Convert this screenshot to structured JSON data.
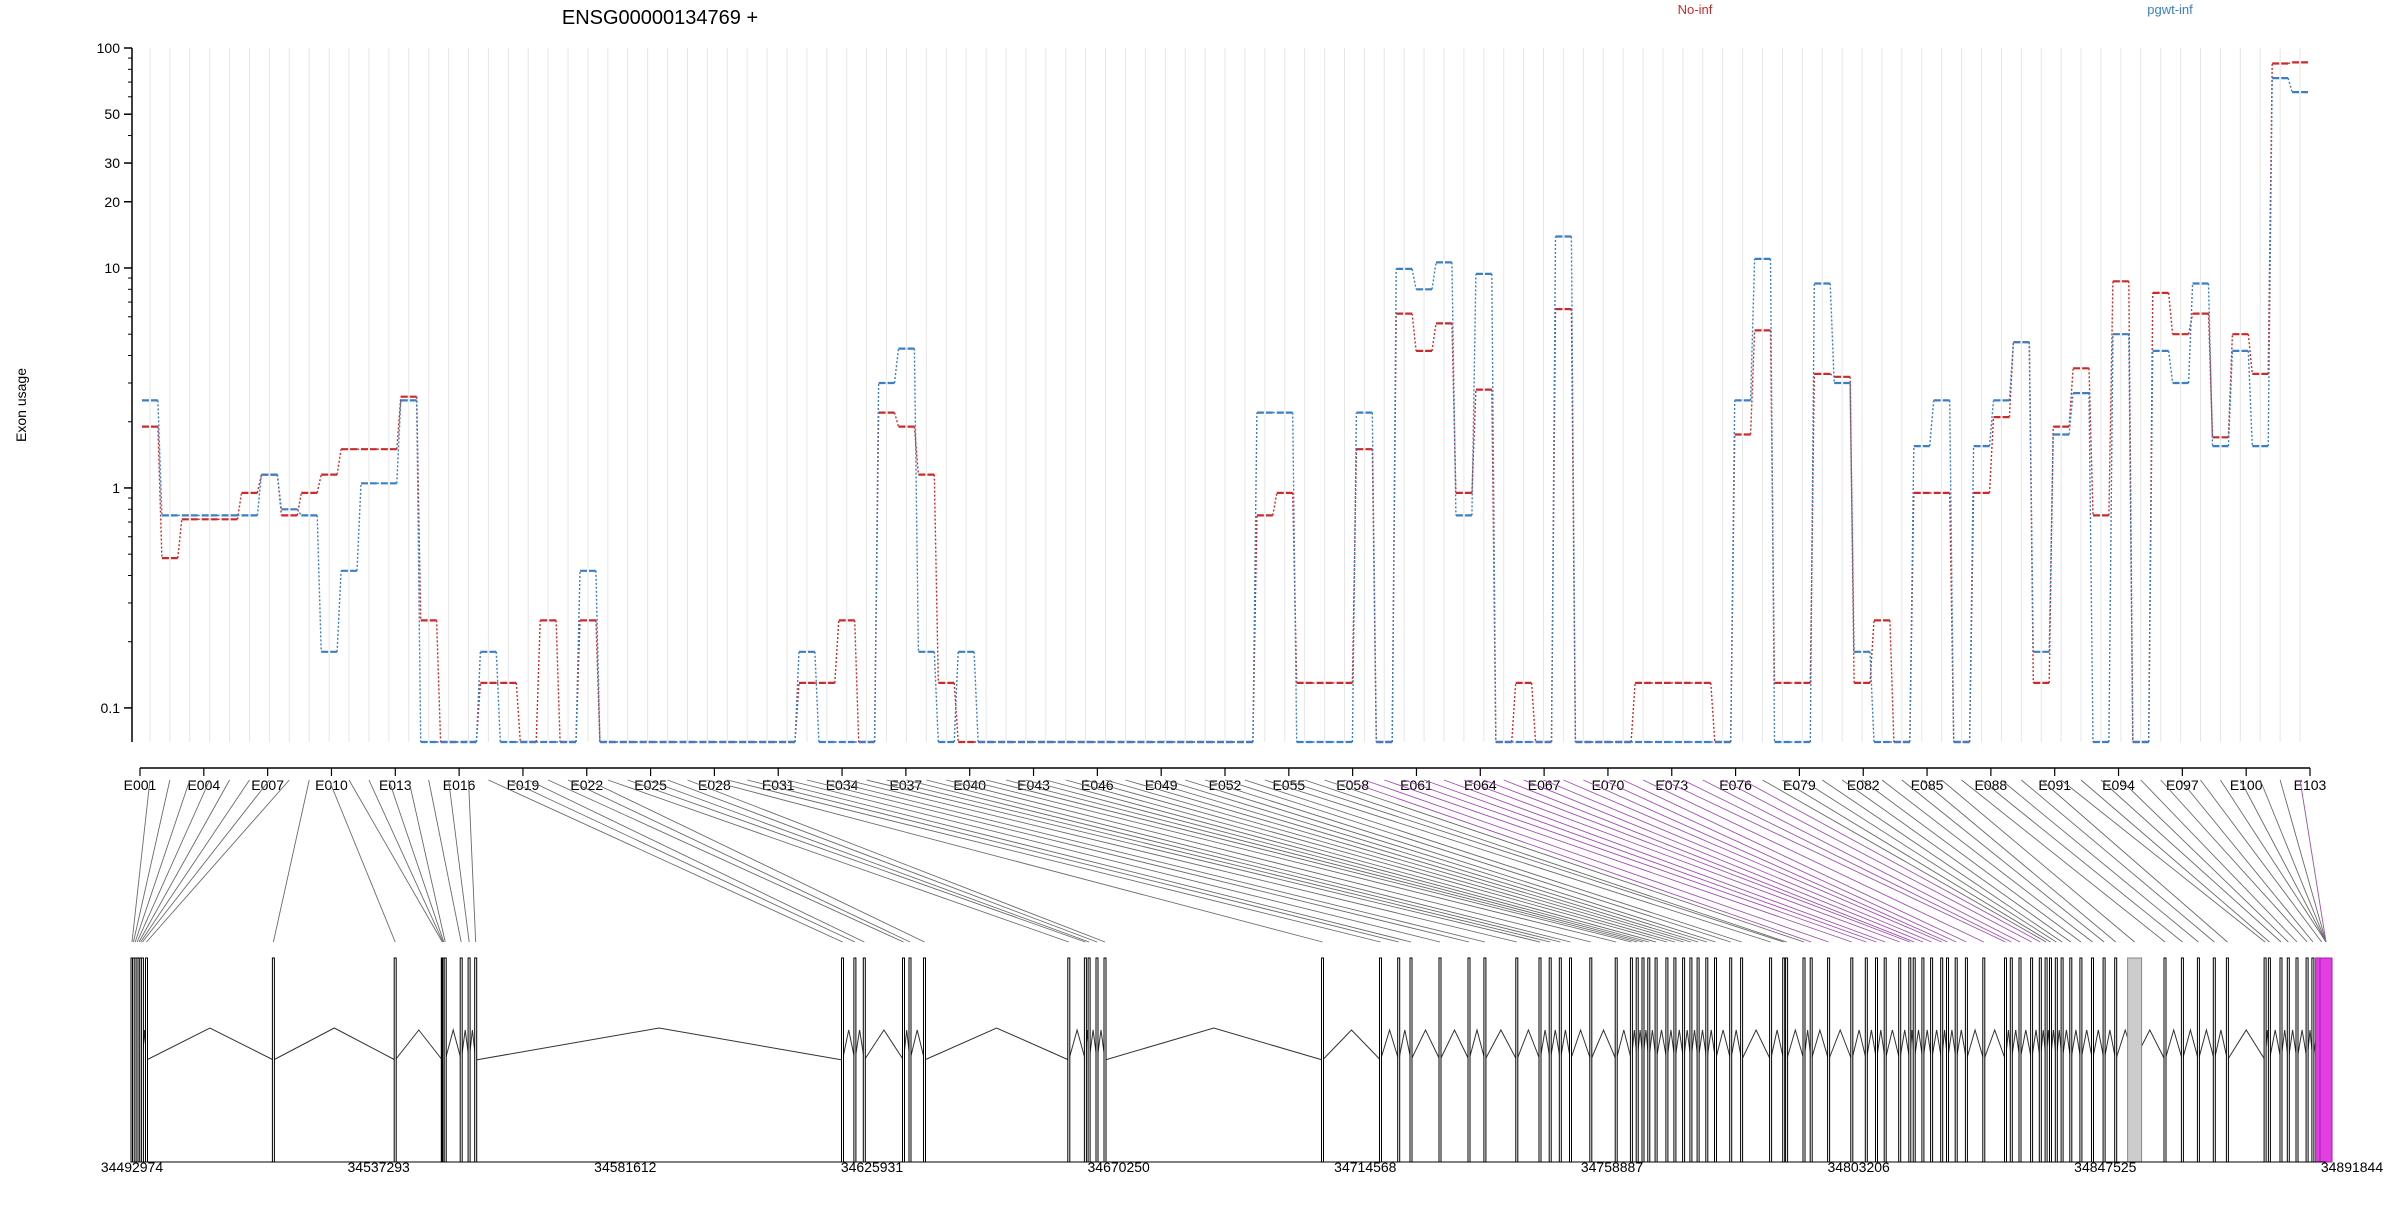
{
  "chart_data": {
    "type": "line",
    "title": "ENSG00000134769 +",
    "ylabel": "Exon usage",
    "xlabel": "",
    "y_scale": "log",
    "ylim": [
      0.07,
      100
    ],
    "y_ticks": [
      0.1,
      1,
      10,
      20,
      30,
      50,
      100
    ],
    "y_tick_labels": [
      "0.1",
      "1",
      "10",
      "20",
      "30",
      "50",
      "100"
    ],
    "x_tick_labels": [
      "E001",
      "E004",
      "E007",
      "E010",
      "E013",
      "E016",
      "E019",
      "E022",
      "E025",
      "E028",
      "E031",
      "E034",
      "E037",
      "E040",
      "E043",
      "E046",
      "E049",
      "E052",
      "E055",
      "E058",
      "E061",
      "E064",
      "E067",
      "E070",
      "E073",
      "E076",
      "E079",
      "E082",
      "E085",
      "E088",
      "E091",
      "E094",
      "E097",
      "E100",
      "E103"
    ],
    "legend_placement": "top",
    "series": [
      {
        "name": "No-inf",
        "color": "#cc2a2a",
        "values": [
          1.9,
          0.48,
          0.72,
          0.72,
          0.72,
          0.95,
          1.15,
          0.75,
          0.95,
          1.15,
          1.5,
          1.5,
          1.5,
          2.6,
          0.25,
          0.07,
          0.07,
          0.13,
          0.13,
          0.07,
          0.25,
          0.07,
          0.25,
          0.07,
          0.07,
          0.07,
          0.07,
          0.07,
          0.07,
          0.07,
          0.07,
          0.07,
          0.07,
          0.13,
          0.13,
          0.25,
          0.07,
          2.2,
          1.9,
          1.15,
          0.13,
          0.07,
          0.07,
          0.07,
          0.07,
          0.07,
          0.07,
          0.07,
          0.07,
          0.07,
          0.07,
          0.07,
          0.07,
          0.07,
          0.07,
          0.07,
          0.75,
          0.95,
          0.13,
          0.13,
          0.13,
          1.5,
          0.07,
          6.2,
          4.2,
          5.6,
          0.95,
          2.8,
          0.07,
          0.13,
          0.07,
          6.5,
          0.07,
          0.07,
          0.07,
          0.13,
          0.13,
          0.13,
          0.13,
          0.07,
          1.75,
          5.2,
          0.13,
          0.13,
          3.3,
          3.2,
          0.13,
          0.25,
          0.07,
          0.95,
          0.95,
          0.07,
          0.95,
          2.1,
          4.6,
          0.13,
          1.9,
          3.5,
          0.75,
          8.7,
          0.07,
          7.7,
          5.0,
          6.2,
          1.7,
          5.0,
          3.3,
          85,
          86
        ],
        "note": ""
      },
      {
        "name": "pgwt-inf",
        "color": "#3b7fc4",
        "values": [
          2.5,
          0.75,
          0.75,
          0.75,
          0.75,
          0.75,
          1.15,
          0.8,
          0.75,
          0.18,
          0.42,
          1.05,
          1.05,
          2.5,
          0.07,
          0.07,
          0.07,
          0.18,
          0.07,
          0.07,
          0.07,
          0.07,
          0.42,
          0.07,
          0.07,
          0.07,
          0.07,
          0.07,
          0.07,
          0.07,
          0.07,
          0.07,
          0.07,
          0.18,
          0.07,
          0.07,
          0.07,
          3.0,
          4.3,
          0.18,
          0.07,
          0.18,
          0.07,
          0.07,
          0.07,
          0.07,
          0.07,
          0.07,
          0.07,
          0.07,
          0.07,
          0.07,
          0.07,
          0.07,
          0.07,
          0.07,
          2.2,
          2.2,
          0.07,
          0.07,
          0.07,
          2.2,
          0.07,
          9.9,
          8.0,
          10.6,
          0.75,
          9.4,
          0.07,
          0.07,
          0.07,
          13.9,
          0.07,
          0.07,
          0.07,
          0.07,
          0.07,
          0.07,
          0.07,
          0.07,
          2.5,
          11.0,
          0.07,
          0.07,
          8.5,
          3.0,
          0.18,
          0.07,
          0.07,
          1.55,
          2.5,
          0.07,
          1.55,
          2.5,
          4.6,
          0.18,
          1.75,
          2.7,
          0.07,
          5.0,
          0.07,
          4.2,
          3.0,
          8.5,
          1.55,
          4.2,
          1.55,
          73,
          63
        ],
        "note": ""
      }
    ],
    "gene_model": {
      "genomic_axis_labels": [
        "34492974",
        "34537293",
        "34581612",
        "34625931",
        "34670250",
        "34714568",
        "34758887",
        "34803206",
        "34847525",
        "34891844"
      ],
      "exons": [
        0.0,
        0.001,
        0.0022,
        0.0035,
        0.0048,
        0.006,
        0.0072,
        0.01,
        0.0975,
        0.1815,
        0.214,
        0.2145,
        0.215,
        0.216,
        0.227,
        0.2325,
        0.237,
        0.49,
        0.4985,
        0.505,
        0.532,
        0.5365,
        0.5465,
        0.646,
        0.6575,
        0.66,
        0.6655,
        0.671,
        0.821,
        0.861,
        0.8735,
        0.882,
        0.902,
        0.922,
        0.933,
        0.955,
        0.971,
        0.978,
        0.985,
        0.992,
        1.006,
        1.0235,
        1.034,
        1.038,
        1.042,
        1.046,
        1.051,
        1.0585,
        1.064,
        1.07,
        1.075,
        1.08,
        1.086,
        1.092,
        1.1025,
        1.11,
        1.13,
        1.139,
        1.141,
        1.153,
        1.158,
        1.17,
        1.186,
        1.196,
        1.203,
        1.209,
        1.219,
        1.226,
        1.229,
        1.235,
        1.241,
        1.248,
        1.252,
        1.258,
        1.265,
        1.277,
        1.292,
        1.296,
        1.302,
        1.31,
        1.316,
        1.32,
        1.323,
        1.327,
        1.331,
        1.337,
        1.344,
        1.352,
        1.36,
        1.368,
        1.381,
        1.402,
        1.414,
        1.425,
        1.436,
        1.445,
        1.471,
        1.474,
        1.482,
        1.487,
        1.493,
        1.5,
        1.504,
        1.51,
        1.513
      ]
    }
  }
}
